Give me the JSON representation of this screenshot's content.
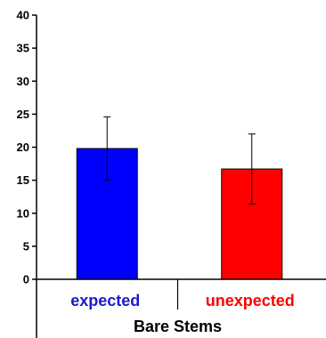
{
  "chart_data": {
    "type": "bar",
    "title": "",
    "xlabel": "",
    "ylabel": "",
    "group_label": "Bare Stems",
    "categories": [
      "expected",
      "unexpected"
    ],
    "values": [
      19.8,
      16.7
    ],
    "error": [
      4.8,
      5.3
    ],
    "colors": [
      "#0000ff",
      "#ff0000"
    ],
    "label_colors": [
      "#1a1acc",
      "#ff0000"
    ],
    "ylim": [
      0,
      40
    ],
    "yticks": [
      0,
      5,
      10,
      15,
      20,
      25,
      30,
      35,
      40
    ],
    "grid": false,
    "legend": "none"
  }
}
